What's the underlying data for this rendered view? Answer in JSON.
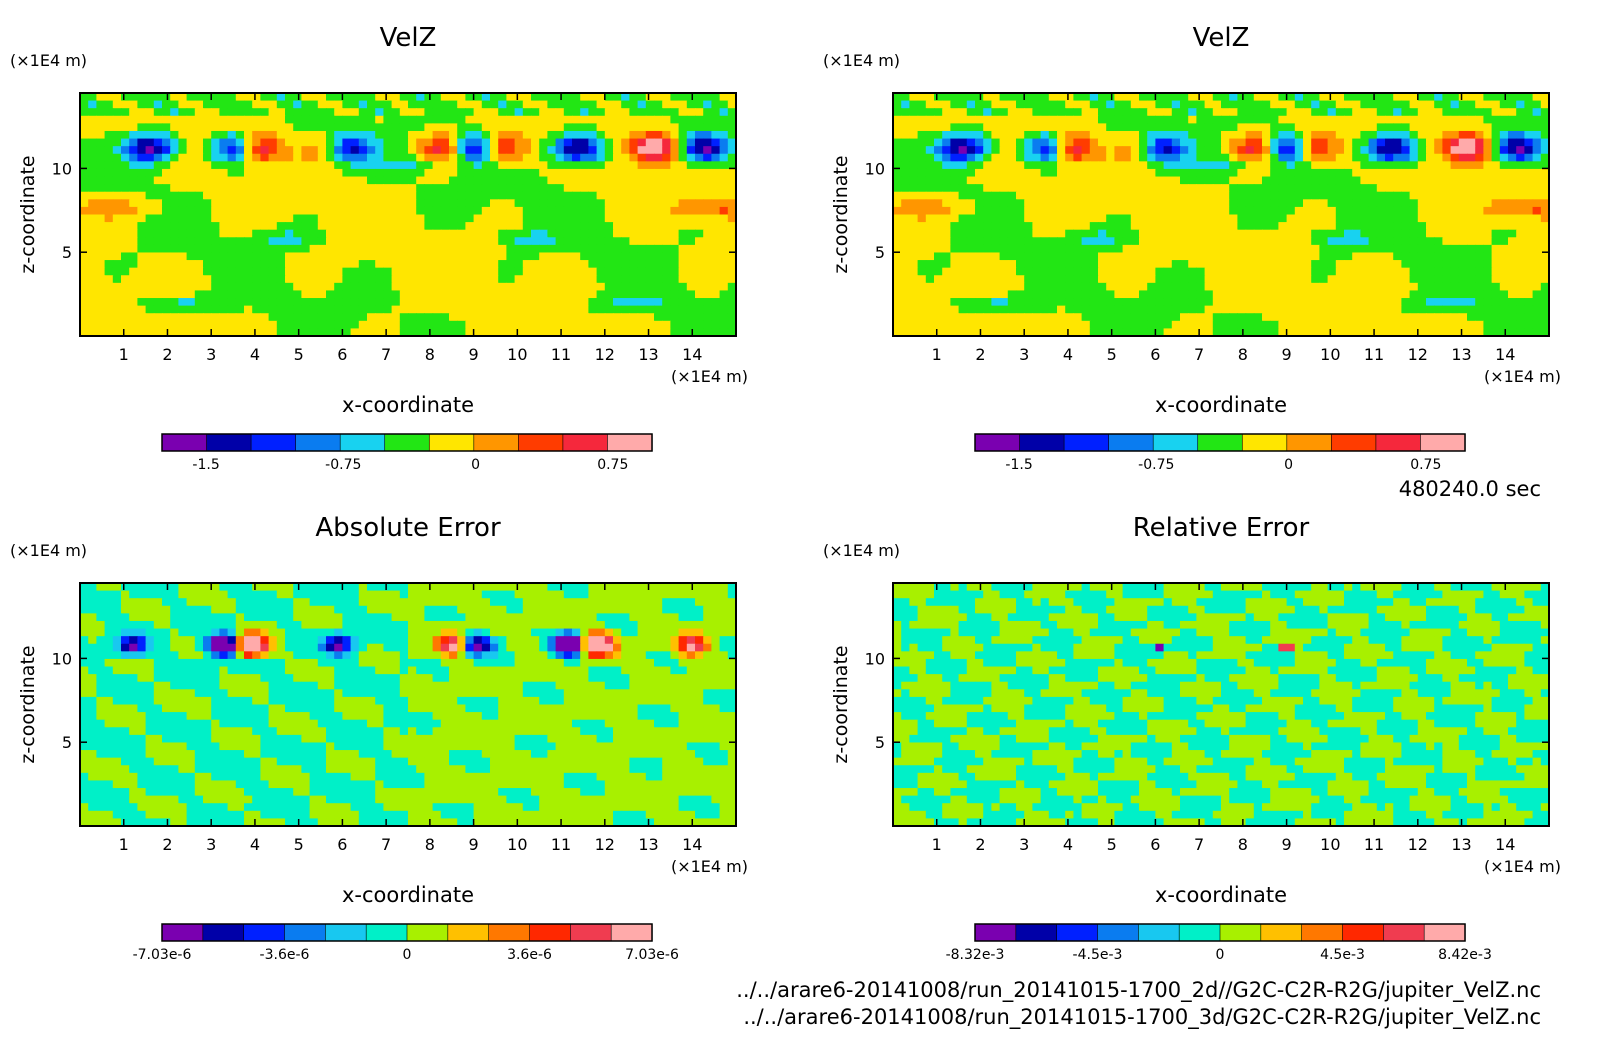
{
  "time_label": "480240.0 sec",
  "files": [
    "../../arare6-20141008/run_20141015-1700_2d//G2C-C2R-R2G/jupiter_VelZ.nc",
    "../../arare6-20141008/run_20141015-1700_3d/G2C-C2R-R2G/jupiter_VelZ.nc"
  ],
  "chart_data": [
    {
      "type": "heatmap",
      "title": "VelZ",
      "xlabel": "x-coordinate",
      "ylabel": "z-coordinate",
      "x_unit": "(×1E4 m)",
      "y_unit": "(×1E4 m)",
      "xlim": [
        0,
        15
      ],
      "ylim": [
        0,
        14.5
      ],
      "xticks": [
        1,
        2,
        3,
        4,
        5,
        6,
        7,
        8,
        9,
        10,
        11,
        12,
        13,
        14
      ],
      "yticks": [
        5,
        10
      ],
      "palette": [
        "#7a00b0",
        "#0000a8",
        "#0020ff",
        "#0a7cf0",
        "#18d2f0",
        "#22e614",
        "#ffe600",
        "#ff9600",
        "#ff3c00",
        "#f5283c",
        "#ffaaaa"
      ],
      "colorbar_ticks": [
        "-1.5",
        "-0.75",
        "0",
        "0.75"
      ],
      "pattern": "velz"
    },
    {
      "type": "heatmap",
      "title": "VelZ",
      "xlabel": "x-coordinate",
      "ylabel": "z-coordinate",
      "x_unit": "(×1E4 m)",
      "y_unit": "(×1E4 m)",
      "xlim": [
        0,
        15
      ],
      "ylim": [
        0,
        14.5
      ],
      "xticks": [
        1,
        2,
        3,
        4,
        5,
        6,
        7,
        8,
        9,
        10,
        11,
        12,
        13,
        14
      ],
      "yticks": [
        5,
        10
      ],
      "palette": [
        "#7a00b0",
        "#0000a8",
        "#0020ff",
        "#0a7cf0",
        "#18d2f0",
        "#22e614",
        "#ffe600",
        "#ff9600",
        "#ff3c00",
        "#f5283c",
        "#ffaaaa"
      ],
      "colorbar_ticks": [
        "-1.5",
        "-0.75",
        "0",
        "0.75"
      ],
      "pattern": "velz"
    },
    {
      "type": "heatmap",
      "title": "Absolute Error",
      "xlabel": "x-coordinate",
      "ylabel": "z-coordinate",
      "x_unit": "(×1E4 m)",
      "y_unit": "(×1E4 m)",
      "xlim": [
        0,
        15
      ],
      "ylim": [
        0,
        14.5
      ],
      "xticks": [
        1,
        2,
        3,
        4,
        5,
        6,
        7,
        8,
        9,
        10,
        11,
        12,
        13,
        14
      ],
      "yticks": [
        5,
        10
      ],
      "palette": [
        "#7a00b0",
        "#0000a8",
        "#0020ff",
        "#0a7cf0",
        "#18c8f0",
        "#00f0c8",
        "#a8f000",
        "#ffc000",
        "#ff7800",
        "#ff2800",
        "#f03c50",
        "#ffaaaa"
      ],
      "colorbar_ticks": [
        "-7.03e-6",
        "-3.6e-6",
        "0",
        "3.6e-6",
        "7.03e-6"
      ],
      "pattern": "abs"
    },
    {
      "type": "heatmap",
      "title": "Relative Error",
      "xlabel": "x-coordinate",
      "ylabel": "z-coordinate",
      "x_unit": "(×1E4 m)",
      "y_unit": "(×1E4 m)",
      "xlim": [
        0,
        15
      ],
      "ylim": [
        0,
        14.5
      ],
      "xticks": [
        1,
        2,
        3,
        4,
        5,
        6,
        7,
        8,
        9,
        10,
        11,
        12,
        13,
        14
      ],
      "yticks": [
        5,
        10
      ],
      "palette": [
        "#7a00b0",
        "#0000a8",
        "#0020ff",
        "#0a7cf0",
        "#18c8f0",
        "#00f0c8",
        "#a8f000",
        "#ffc000",
        "#ff7800",
        "#ff2800",
        "#f03c50",
        "#ffaaaa"
      ],
      "colorbar_ticks": [
        "-8.32e-3",
        "-4.5e-3",
        "0",
        "4.5e-3",
        "8.42e-3"
      ],
      "pattern": "rel"
    }
  ]
}
